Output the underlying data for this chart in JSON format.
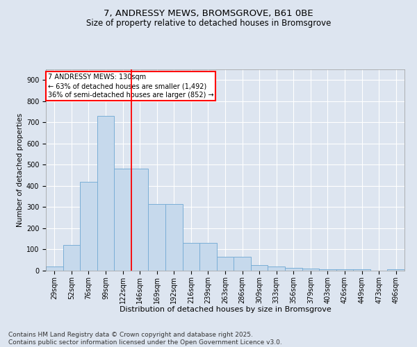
{
  "title1": "7, ANDRESSY MEWS, BROMSGROVE, B61 0BE",
  "title2": "Size of property relative to detached houses in Bromsgrove",
  "xlabel": "Distribution of detached houses by size in Bromsgrove",
  "ylabel": "Number of detached properties",
  "categories": [
    "29sqm",
    "52sqm",
    "76sqm",
    "99sqm",
    "122sqm",
    "146sqm",
    "169sqm",
    "192sqm",
    "216sqm",
    "239sqm",
    "263sqm",
    "286sqm",
    "309sqm",
    "333sqm",
    "356sqm",
    "379sqm",
    "403sqm",
    "426sqm",
    "449sqm",
    "473sqm",
    "496sqm"
  ],
  "values": [
    20,
    120,
    420,
    730,
    480,
    480,
    315,
    315,
    130,
    130,
    65,
    65,
    25,
    20,
    12,
    10,
    5,
    5,
    5,
    0,
    5
  ],
  "bar_color": "#c6d9ec",
  "bar_edge_color": "#7aaed6",
  "vline_x": 4.5,
  "vline_color": "red",
  "annotation_text": "7 ANDRESSY MEWS: 130sqm\n← 63% of detached houses are smaller (1,492)\n36% of semi-detached houses are larger (852) →",
  "annotation_box_color": "white",
  "annotation_box_edge": "red",
  "ylim": [
    0,
    950
  ],
  "yticks": [
    0,
    100,
    200,
    300,
    400,
    500,
    600,
    700,
    800,
    900
  ],
  "background_color": "#dde5f0",
  "plot_bg_color": "#dde5f0",
  "footer": "Contains HM Land Registry data © Crown copyright and database right 2025.\nContains public sector information licensed under the Open Government Licence v3.0.",
  "title1_fontsize": 9.5,
  "title2_fontsize": 8.5,
  "xlabel_fontsize": 8,
  "ylabel_fontsize": 7.5,
  "tick_fontsize": 7,
  "annotation_fontsize": 7,
  "footer_fontsize": 6.5
}
